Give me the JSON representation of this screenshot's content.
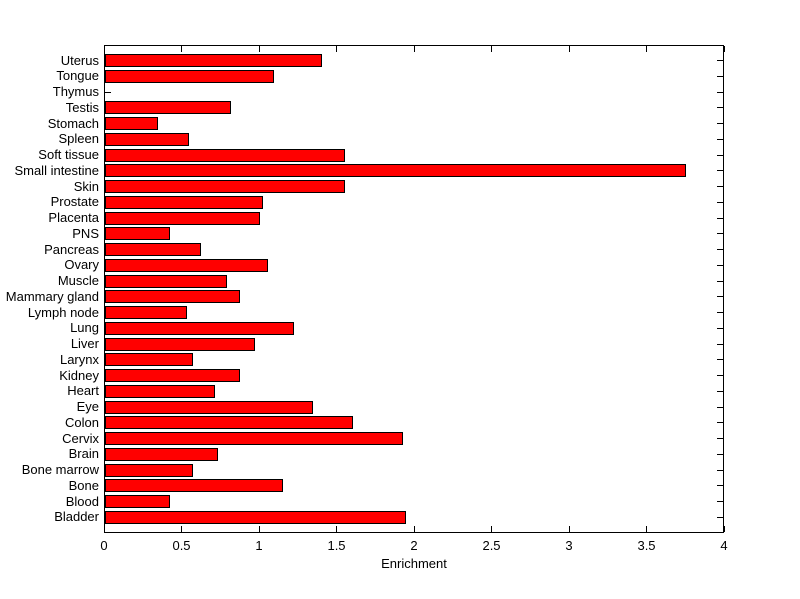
{
  "figure": {
    "background": "#ffffff",
    "axis_color": "#000000",
    "text_color": "#000000"
  },
  "chart_data": {
    "type": "bar",
    "orientation": "horizontal",
    "title": "",
    "xlabel": "Enrichment",
    "ylabel": "",
    "xlim": [
      0,
      4
    ],
    "xticks": [
      0,
      0.5,
      1,
      1.5,
      2,
      2.5,
      3,
      3.5,
      4
    ],
    "xtick_labels": [
      "0",
      "0.5",
      "1",
      "1.5",
      "2",
      "2.5",
      "3",
      "3.5",
      "4"
    ],
    "grid": false,
    "legend": false,
    "bar_color": "#ff0000",
    "bar_edge_color": "#000000",
    "categories_top_to_bottom": [
      "Uterus",
      "Tongue",
      "Thymus",
      "Testis",
      "Stomach",
      "Spleen",
      "Soft tissue",
      "Small intestine",
      "Skin",
      "Prostate",
      "Placenta",
      "PNS",
      "Pancreas",
      "Ovary",
      "Muscle",
      "Mammary gland",
      "Lymph node",
      "Lung",
      "Liver",
      "Larynx",
      "Kidney",
      "Heart",
      "Eye",
      "Colon",
      "Cervix",
      "Brain",
      "Bone marrow",
      "Bone",
      "Blood",
      "Bladder"
    ],
    "values_top_to_bottom": [
      1.4,
      1.09,
      0.0,
      0.81,
      0.34,
      0.54,
      1.55,
      3.75,
      1.55,
      1.02,
      1.0,
      0.42,
      0.62,
      1.05,
      0.79,
      0.87,
      0.53,
      1.22,
      0.97,
      0.57,
      0.87,
      0.71,
      1.34,
      1.6,
      1.92,
      0.73,
      0.57,
      1.15,
      0.42,
      1.94
    ]
  }
}
